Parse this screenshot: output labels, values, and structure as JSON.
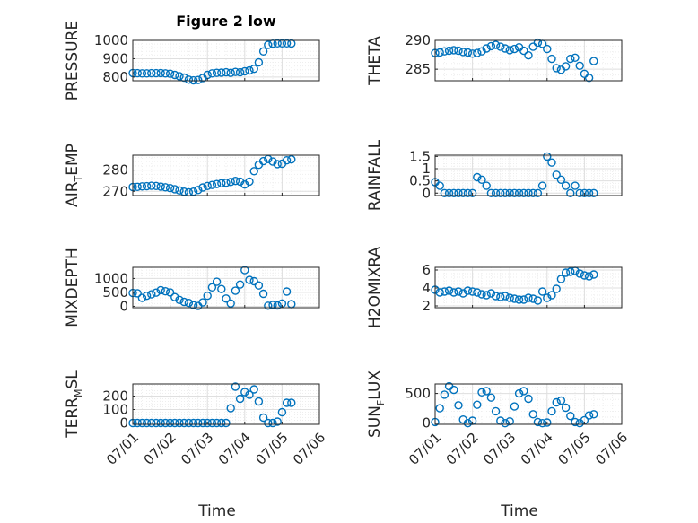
{
  "figure_title": "Figure 2 low",
  "colors": {
    "marker": "#0072BD",
    "axis": "#262626",
    "grid_major": "#DFDFDF",
    "grid_minor": "#EEEEEE"
  },
  "marker": "open-circle",
  "chart_data": [
    {
      "type": "scatter",
      "title": "Figure 2 low",
      "ylabel": "PRESSURE",
      "xlabel": "",
      "xlim": [
        "07/01",
        "07/06"
      ],
      "ylim": [
        780,
        1000
      ],
      "yticks": [
        800,
        900,
        1000
      ],
      "xticks": [],
      "grid": true,
      "x": [
        "07/01 00:00",
        "07/01 03:00",
        "07/01 06:00",
        "07/01 09:00",
        "07/01 12:00",
        "07/01 15:00",
        "07/01 18:00",
        "07/01 21:00",
        "07/02 00:00",
        "07/02 03:00",
        "07/02 06:00",
        "07/02 09:00",
        "07/02 12:00",
        "07/02 15:00",
        "07/02 18:00",
        "07/02 21:00",
        "07/03 00:00",
        "07/03 03:00",
        "07/03 06:00",
        "07/03 09:00",
        "07/03 12:00",
        "07/03 15:00",
        "07/03 18:00",
        "07/03 21:00",
        "07/04 00:00",
        "07/04 03:00",
        "07/04 06:00",
        "07/04 09:00",
        "07/04 12:00",
        "07/04 15:00",
        "07/04 18:00",
        "07/04 21:00",
        "07/05 00:00",
        "07/05 03:00",
        "07/05 06:00"
      ],
      "y": [
        822,
        821,
        820,
        820,
        821,
        821,
        822,
        820,
        818,
        812,
        805,
        797,
        786,
        782,
        784,
        795,
        812,
        820,
        823,
        824,
        826,
        823,
        828,
        826,
        832,
        836,
        845,
        880,
        940,
        975,
        982,
        984,
        984,
        984,
        983
      ]
    },
    {
      "type": "scatter",
      "ylabel": "THETA",
      "xlabel": "",
      "xlim": [
        "07/01",
        "07/06"
      ],
      "ylim": [
        283,
        290
      ],
      "yticks": [
        285,
        290
      ],
      "xticks": [],
      "grid": true,
      "x": [
        "07/01 00:00",
        "07/01 03:00",
        "07/01 06:00",
        "07/01 09:00",
        "07/01 12:00",
        "07/01 15:00",
        "07/01 18:00",
        "07/01 21:00",
        "07/02 00:00",
        "07/02 03:00",
        "07/02 06:00",
        "07/02 09:00",
        "07/02 12:00",
        "07/02 15:00",
        "07/02 18:00",
        "07/02 21:00",
        "07/03 00:00",
        "07/03 03:00",
        "07/03 06:00",
        "07/03 09:00",
        "07/03 12:00",
        "07/03 15:00",
        "07/03 18:00",
        "07/03 21:00",
        "07/04 00:00",
        "07/04 03:00",
        "07/04 06:00",
        "07/04 09:00",
        "07/04 12:00",
        "07/04 15:00",
        "07/04 18:00",
        "07/04 21:00",
        "07/05 00:00",
        "07/05 03:00",
        "07/05 06:00"
      ],
      "y": [
        287.8,
        287.9,
        288.1,
        288.2,
        288.3,
        288.2,
        288.0,
        287.9,
        287.7,
        287.8,
        288.1,
        288.6,
        289.0,
        289.2,
        288.9,
        288.6,
        288.3,
        288.5,
        288.8,
        288.2,
        287.4,
        288.9,
        289.6,
        289.4,
        288.5,
        286.8,
        285.2,
        284.9,
        285.5,
        286.8,
        287.0,
        285.6,
        284.2,
        283.5,
        286.4
      ]
    },
    {
      "type": "scatter",
      "ylabel": "AIR_TEMP",
      "xlabel": "",
      "xlim": [
        "07/01",
        "07/06"
      ],
      "ylim": [
        268,
        287
      ],
      "yticks": [
        270,
        280
      ],
      "xticks": [],
      "grid": true,
      "x": [
        "07/01 00:00",
        "07/01 03:00",
        "07/01 06:00",
        "07/01 09:00",
        "07/01 12:00",
        "07/01 15:00",
        "07/01 18:00",
        "07/01 21:00",
        "07/02 00:00",
        "07/02 03:00",
        "07/02 06:00",
        "07/02 09:00",
        "07/02 12:00",
        "07/02 15:00",
        "07/02 18:00",
        "07/02 21:00",
        "07/03 00:00",
        "07/03 03:00",
        "07/03 06:00",
        "07/03 09:00",
        "07/03 12:00",
        "07/03 15:00",
        "07/03 18:00",
        "07/03 21:00",
        "07/04 00:00",
        "07/04 03:00",
        "07/04 06:00",
        "07/04 09:00",
        "07/04 12:00",
        "07/04 15:00",
        "07/04 18:00",
        "07/04 21:00",
        "07/05 00:00",
        "07/05 03:00",
        "07/05 06:00"
      ],
      "y": [
        272.0,
        272.1,
        272.3,
        272.4,
        272.6,
        272.5,
        272.2,
        271.9,
        271.5,
        271.0,
        270.4,
        269.8,
        269.5,
        269.8,
        270.6,
        271.8,
        272.5,
        273.0,
        273.4,
        273.8,
        274.0,
        274.4,
        274.9,
        274.6,
        273.2,
        274.6,
        279.5,
        282.5,
        284.2,
        285.2,
        284.0,
        282.8,
        283.0,
        284.6,
        285.0
      ]
    },
    {
      "type": "scatter",
      "ylabel": "RAINFALL",
      "xlabel": "",
      "xlim": [
        "07/01",
        "07/06"
      ],
      "ylim": [
        -0.1,
        1.55
      ],
      "yticks": [
        0,
        0.5,
        1,
        1.5
      ],
      "xticks": [],
      "grid": true,
      "x": [
        "07/01 00:00",
        "07/01 03:00",
        "07/01 06:00",
        "07/01 09:00",
        "07/01 12:00",
        "07/01 15:00",
        "07/01 18:00",
        "07/01 21:00",
        "07/02 00:00",
        "07/02 03:00",
        "07/02 06:00",
        "07/02 09:00",
        "07/02 12:00",
        "07/02 15:00",
        "07/02 18:00",
        "07/02 21:00",
        "07/03 00:00",
        "07/03 03:00",
        "07/03 06:00",
        "07/03 09:00",
        "07/03 12:00",
        "07/03 15:00",
        "07/03 18:00",
        "07/03 21:00",
        "07/04 00:00",
        "07/04 03:00",
        "07/04 06:00",
        "07/04 09:00",
        "07/04 12:00",
        "07/04 15:00",
        "07/04 18:00",
        "07/04 21:00",
        "07/05 00:00",
        "07/05 03:00",
        "07/05 06:00"
      ],
      "y": [
        0.45,
        0.3,
        0,
        0,
        0,
        0,
        0,
        0,
        0,
        0.65,
        0.55,
        0.3,
        0,
        0,
        0,
        0,
        0,
        0,
        0,
        0,
        0,
        0,
        0,
        0.3,
        1.5,
        1.25,
        0.75,
        0.55,
        0.3,
        0,
        0.3,
        0,
        0,
        0,
        0
      ]
    },
    {
      "type": "scatter",
      "ylabel": "MIXDEPTH",
      "xlabel": "",
      "xlim": [
        "07/01",
        "07/06"
      ],
      "ylim": [
        -50,
        1400
      ],
      "yticks": [
        0,
        500,
        1000
      ],
      "xticks": [],
      "grid": true,
      "x": [
        "07/01 00:00",
        "07/01 03:00",
        "07/01 06:00",
        "07/01 09:00",
        "07/01 12:00",
        "07/01 15:00",
        "07/01 18:00",
        "07/01 21:00",
        "07/02 00:00",
        "07/02 03:00",
        "07/02 06:00",
        "07/02 09:00",
        "07/02 12:00",
        "07/02 15:00",
        "07/02 18:00",
        "07/02 21:00",
        "07/03 00:00",
        "07/03 03:00",
        "07/03 06:00",
        "07/03 09:00",
        "07/03 12:00",
        "07/03 15:00",
        "07/03 18:00",
        "07/03 21:00",
        "07/04 00:00",
        "07/04 03:00",
        "07/04 06:00",
        "07/04 09:00",
        "07/04 12:00",
        "07/04 15:00",
        "07/04 18:00",
        "07/04 21:00",
        "07/05 00:00",
        "07/05 03:00",
        "07/05 06:00"
      ],
      "y": [
        480,
        470,
        300,
        380,
        430,
        490,
        580,
        540,
        500,
        330,
        230,
        160,
        120,
        40,
        10,
        140,
        380,
        680,
        880,
        620,
        280,
        100,
        560,
        780,
        1300,
        950,
        900,
        750,
        450,
        20,
        50,
        30,
        100,
        530,
        80
      ]
    },
    {
      "type": "scatter",
      "ylabel": "H2OMIXRA",
      "xlabel": "",
      "xlim": [
        "07/01",
        "07/06"
      ],
      "ylim": [
        1.8,
        6.3
      ],
      "yticks": [
        2,
        4,
        6
      ],
      "xticks": [],
      "grid": true,
      "x": [
        "07/01 00:00",
        "07/01 03:00",
        "07/01 06:00",
        "07/01 09:00",
        "07/01 12:00",
        "07/01 15:00",
        "07/01 18:00",
        "07/01 21:00",
        "07/02 00:00",
        "07/02 03:00",
        "07/02 06:00",
        "07/02 09:00",
        "07/02 12:00",
        "07/02 15:00",
        "07/02 18:00",
        "07/02 21:00",
        "07/03 00:00",
        "07/03 03:00",
        "07/03 06:00",
        "07/03 09:00",
        "07/03 12:00",
        "07/03 15:00",
        "07/03 18:00",
        "07/03 21:00",
        "07/04 00:00",
        "07/04 03:00",
        "07/04 06:00",
        "07/04 09:00",
        "07/04 12:00",
        "07/04 15:00",
        "07/04 18:00",
        "07/04 21:00",
        "07/05 00:00",
        "07/05 03:00",
        "07/05 06:00"
      ],
      "y": [
        3.8,
        3.5,
        3.6,
        3.7,
        3.5,
        3.6,
        3.4,
        3.7,
        3.6,
        3.5,
        3.3,
        3.2,
        3.4,
        3.1,
        3.0,
        3.1,
        2.9,
        2.8,
        2.7,
        2.7,
        2.9,
        2.8,
        2.6,
        3.6,
        2.9,
        3.2,
        3.9,
        5.0,
        5.7,
        5.8,
        5.9,
        5.6,
        5.4,
        5.3,
        5.5
      ]
    },
    {
      "type": "scatter",
      "ylabel": "TERR_MSL",
      "xlabel": "Time",
      "xlim": [
        "07/01",
        "07/06"
      ],
      "ylim": [
        -10,
        290
      ],
      "yticks": [
        0,
        100,
        200
      ],
      "xticks": [
        "07/01",
        "07/02",
        "07/03",
        "07/04",
        "07/05",
        "07/06"
      ],
      "grid": true,
      "x": [
        "07/01 00:00",
        "07/01 03:00",
        "07/01 06:00",
        "07/01 09:00",
        "07/01 12:00",
        "07/01 15:00",
        "07/01 18:00",
        "07/01 21:00",
        "07/02 00:00",
        "07/02 03:00",
        "07/02 06:00",
        "07/02 09:00",
        "07/02 12:00",
        "07/02 15:00",
        "07/02 18:00",
        "07/02 21:00",
        "07/03 00:00",
        "07/03 03:00",
        "07/03 06:00",
        "07/03 09:00",
        "07/03 12:00",
        "07/03 15:00",
        "07/03 18:00",
        "07/03 21:00",
        "07/04 00:00",
        "07/04 03:00",
        "07/04 06:00",
        "07/04 09:00",
        "07/04 12:00",
        "07/04 15:00",
        "07/04 18:00",
        "07/04 21:00",
        "07/05 00:00",
        "07/05 03:00",
        "07/05 06:00"
      ],
      "y": [
        0,
        0,
        0,
        0,
        0,
        0,
        0,
        0,
        0,
        0,
        0,
        0,
        0,
        0,
        0,
        0,
        0,
        0,
        0,
        0,
        0,
        110,
        270,
        180,
        230,
        210,
        250,
        160,
        40,
        0,
        0,
        10,
        80,
        150,
        150
      ]
    },
    {
      "type": "scatter",
      "ylabel": "SUN_FLUX",
      "xlabel": "Time",
      "xlim": [
        "07/01",
        "07/06"
      ],
      "ylim": [
        -20,
        660
      ],
      "yticks": [
        0,
        500
      ],
      "xticks": [
        "07/01",
        "07/02",
        "07/03",
        "07/04",
        "07/05",
        "07/06"
      ],
      "grid": true,
      "x": [
        "07/01 00:00",
        "07/01 03:00",
        "07/01 06:00",
        "07/01 09:00",
        "07/01 12:00",
        "07/01 15:00",
        "07/01 18:00",
        "07/01 21:00",
        "07/02 00:00",
        "07/02 03:00",
        "07/02 06:00",
        "07/02 09:00",
        "07/02 12:00",
        "07/02 15:00",
        "07/02 18:00",
        "07/02 21:00",
        "07/03 00:00",
        "07/03 03:00",
        "07/03 06:00",
        "07/03 09:00",
        "07/03 12:00",
        "07/03 15:00",
        "07/03 18:00",
        "07/03 21:00",
        "07/04 00:00",
        "07/04 03:00",
        "07/04 06:00",
        "07/04 09:00",
        "07/04 12:00",
        "07/04 15:00",
        "07/04 18:00",
        "07/04 21:00",
        "07/05 00:00",
        "07/05 03:00",
        "07/05 06:00"
      ],
      "y": [
        20,
        250,
        480,
        620,
        560,
        300,
        60,
        0,
        40,
        310,
        520,
        540,
        430,
        200,
        40,
        0,
        30,
        280,
        500,
        540,
        410,
        150,
        20,
        0,
        10,
        200,
        350,
        380,
        260,
        120,
        20,
        0,
        50,
        130,
        150
      ]
    }
  ]
}
